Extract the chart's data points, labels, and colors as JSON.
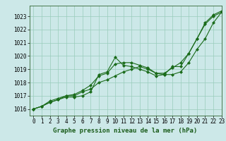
{
  "xlabel": "Graphe pression niveau de la mer (hPa)",
  "xlim": [
    -0.5,
    23
  ],
  "ylim": [
    1015.5,
    1023.8
  ],
  "yticks": [
    1016,
    1017,
    1018,
    1019,
    1020,
    1021,
    1022,
    1023
  ],
  "xticks": [
    0,
    1,
    2,
    3,
    4,
    5,
    6,
    7,
    8,
    9,
    10,
    11,
    12,
    13,
    14,
    15,
    16,
    17,
    18,
    19,
    20,
    21,
    22,
    23
  ],
  "bg_color": "#cce8e8",
  "grid_color": "#99ccbb",
  "line_color": "#1a6b1a",
  "line1": [
    1016.0,
    1016.2,
    1016.5,
    1016.7,
    1016.9,
    1016.9,
    1017.0,
    1017.3,
    1018.6,
    1018.8,
    1019.9,
    1019.3,
    1019.2,
    1019.0,
    1018.8,
    1018.5,
    1018.6,
    1019.2,
    1019.2,
    1020.2,
    1021.3,
    1022.4,
    1023.0,
    1023.3
  ],
  "line2": [
    1016.0,
    1016.2,
    1016.5,
    1016.7,
    1017.0,
    1017.0,
    1017.3,
    1017.5,
    1018.0,
    1018.2,
    1018.5,
    1018.8,
    1019.0,
    1019.2,
    1019.0,
    1018.7,
    1018.6,
    1018.6,
    1018.8,
    1019.5,
    1020.5,
    1021.3,
    1022.5,
    1023.3
  ],
  "line3": [
    1016.0,
    1016.2,
    1016.6,
    1016.8,
    1017.0,
    1017.1,
    1017.4,
    1017.8,
    1018.5,
    1018.7,
    1019.4,
    1019.5,
    1019.5,
    1019.3,
    1019.1,
    1018.7,
    1018.7,
    1019.1,
    1019.5,
    1020.2,
    1021.3,
    1022.5,
    1023.1,
    1023.4
  ],
  "marker": "D",
  "marker_size": 2.0,
  "linewidth": 0.8,
  "label_fontsize": 6.5,
  "tick_fontsize": 5.5
}
